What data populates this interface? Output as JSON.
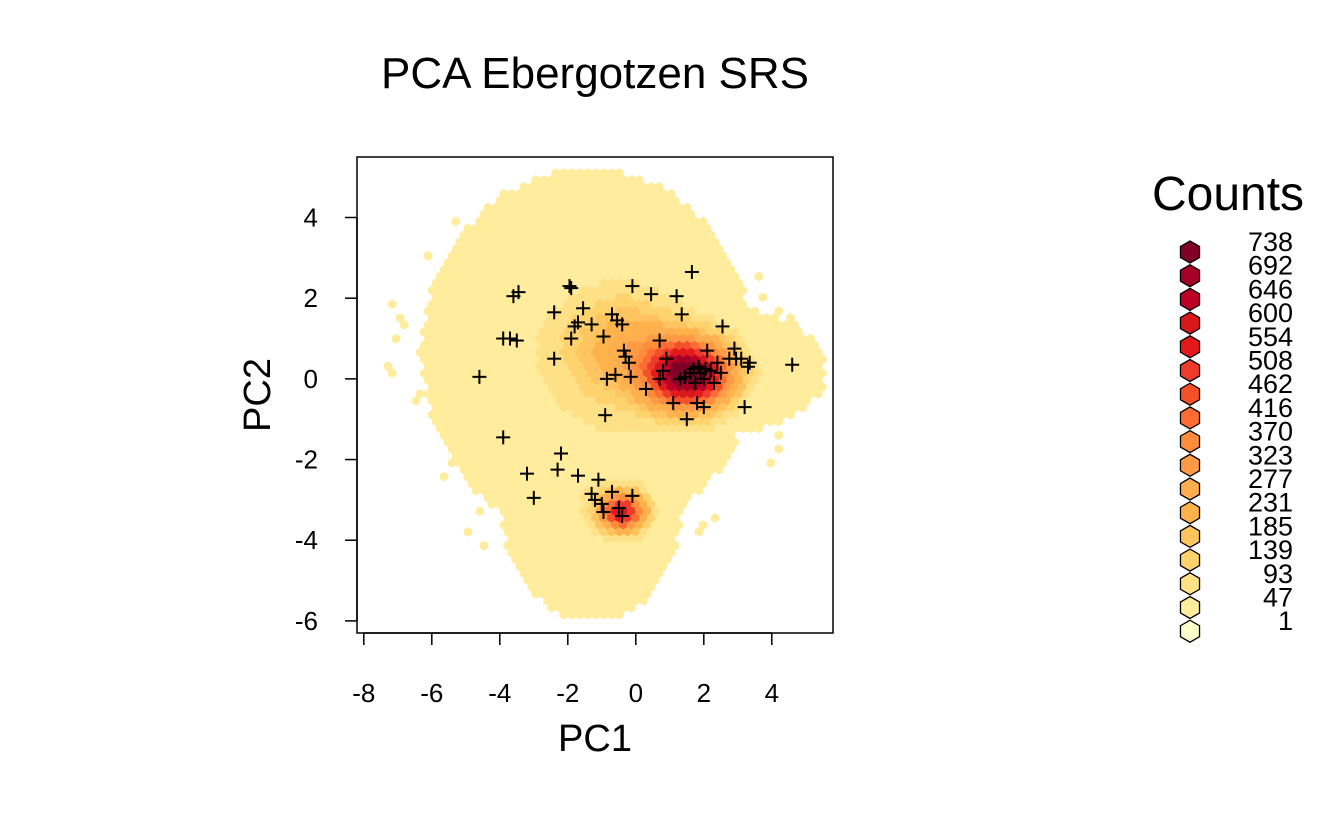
{
  "chart_data": {
    "type": "hexbin",
    "title": "PCA Ebergotzen SRS",
    "xlabel": "PC1",
    "ylabel": "PC2",
    "xlim": [
      -8.2,
      5.8
    ],
    "ylim": [
      -6.3,
      5.5
    ],
    "x_ticks": [
      -8,
      -6,
      -4,
      -2,
      0,
      2,
      4
    ],
    "y_ticks": [
      -6,
      -4,
      -2,
      0,
      2,
      4
    ],
    "x_tick_labels": [
      "-8",
      "-6",
      "-4",
      "-2",
      "0",
      "2",
      "4"
    ],
    "y_tick_labels": [
      "-6",
      "-4",
      "-2",
      "0",
      "2",
      "4"
    ],
    "legend": {
      "title": "Counts",
      "position": "right",
      "levels": [
        "738",
        "692",
        "646",
        "600",
        "554",
        "508",
        "462",
        "416",
        "370",
        "323",
        "277",
        "231",
        "185",
        "139",
        "93",
        "47",
        "1"
      ],
      "colors": [
        "#800026",
        "#a50026",
        "#bd0026",
        "#d7191c",
        "#e31a1c",
        "#ef3b2c",
        "#f4502a",
        "#fc6c33",
        "#fd8d3c",
        "#fd9a45",
        "#fdae4f",
        "#feb24c",
        "#fec460",
        "#fed36e",
        "#fee187",
        "#ffec9c",
        "#ffffcc"
      ]
    },
    "density_clusters": [
      {
        "center": [
          -1.5,
          0.2
        ],
        "spread": [
          2.6,
          2.0
        ],
        "peak": 60
      },
      {
        "center": [
          1.6,
          0.1
        ],
        "spread": [
          0.9,
          0.6
        ],
        "peak": 738
      },
      {
        "center": [
          -0.4,
          -3.3
        ],
        "spread": [
          0.5,
          0.35
        ],
        "peak": 560
      },
      {
        "center": [
          -0.3,
          0.8
        ],
        "spread": [
          1.2,
          0.9
        ],
        "peak": 200
      },
      {
        "center": [
          -1.2,
          -3.0
        ],
        "spread": [
          1.0,
          1.2
        ],
        "peak": 30
      }
    ],
    "overlay_points": [
      [
        -4.6,
        0.05
      ],
      [
        -3.9,
        1.0
      ],
      [
        -3.7,
        1.0
      ],
      [
        -3.5,
        0.95
      ],
      [
        -3.6,
        2.05
      ],
      [
        -3.45,
        2.15
      ],
      [
        -2.4,
        1.65
      ],
      [
        -2.4,
        0.5
      ],
      [
        -1.95,
        2.3
      ],
      [
        -1.9,
        2.25
      ],
      [
        -1.8,
        1.3
      ],
      [
        -1.7,
        1.4
      ],
      [
        -1.55,
        1.75
      ],
      [
        -1.9,
        1.0
      ],
      [
        -1.3,
        1.35
      ],
      [
        -0.95,
        1.05
      ],
      [
        -0.7,
        1.6
      ],
      [
        -0.55,
        1.45
      ],
      [
        -0.4,
        1.35
      ],
      [
        -0.35,
        0.7
      ],
      [
        -0.3,
        0.55
      ],
      [
        -0.2,
        0.4
      ],
      [
        -0.85,
        0.0
      ],
      [
        -0.6,
        0.1
      ],
      [
        -0.15,
        0.05
      ],
      [
        -0.1,
        2.3
      ],
      [
        0.45,
        2.1
      ],
      [
        0.7,
        0.95
      ],
      [
        0.9,
        0.5
      ],
      [
        0.8,
        0.2
      ],
      [
        0.7,
        0.0
      ],
      [
        0.3,
        -0.25
      ],
      [
        1.2,
        2.05
      ],
      [
        1.35,
        1.6
      ],
      [
        1.65,
        2.65
      ],
      [
        1.3,
        0.0
      ],
      [
        1.45,
        0.05
      ],
      [
        1.6,
        0.15
      ],
      [
        1.7,
        0.25
      ],
      [
        1.75,
        -0.1
      ],
      [
        1.85,
        0.3
      ],
      [
        1.9,
        0.15
      ],
      [
        2.0,
        0.0
      ],
      [
        2.05,
        0.25
      ],
      [
        2.1,
        0.7
      ],
      [
        2.2,
        0.2
      ],
      [
        2.3,
        -0.1
      ],
      [
        2.4,
        0.4
      ],
      [
        2.5,
        0.15
      ],
      [
        2.55,
        1.3
      ],
      [
        2.75,
        0.5
      ],
      [
        2.9,
        0.75
      ],
      [
        2.95,
        0.5
      ],
      [
        3.1,
        0.5
      ],
      [
        3.3,
        0.3
      ],
      [
        3.35,
        0.4
      ],
      [
        4.6,
        0.35
      ],
      [
        1.8,
        -0.6
      ],
      [
        2.0,
        -0.7
      ],
      [
        3.2,
        -0.7
      ],
      [
        1.5,
        -1.0
      ],
      [
        1.1,
        -0.6
      ],
      [
        -0.9,
        -0.9
      ],
      [
        -3.9,
        -1.45
      ],
      [
        -2.2,
        -1.85
      ],
      [
        -2.3,
        -2.25
      ],
      [
        -3.2,
        -2.35
      ],
      [
        -3.0,
        -2.95
      ],
      [
        -1.7,
        -2.4
      ],
      [
        -1.1,
        -2.5
      ],
      [
        -1.3,
        -2.85
      ],
      [
        -1.2,
        -3.0
      ],
      [
        -1.0,
        -3.1
      ],
      [
        -0.95,
        -3.3
      ],
      [
        -0.7,
        -2.8
      ],
      [
        -0.5,
        -3.2
      ],
      [
        -0.4,
        -3.4
      ],
      [
        -0.1,
        -2.9
      ]
    ]
  }
}
